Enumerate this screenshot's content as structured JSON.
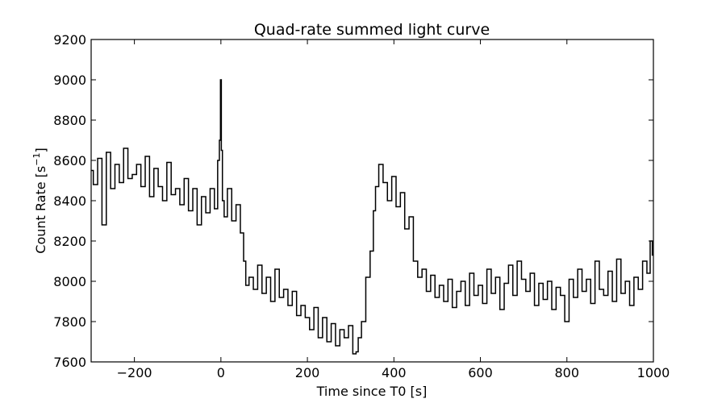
{
  "chart_data": {
    "type": "line",
    "title": "Quad-rate summed light curve",
    "xlabel": "Time since T0 [s]",
    "ylabel_main": "Count Rate [s",
    "ylabel_sup": "−1",
    "ylabel_end": "]",
    "xlim": [
      -300,
      1000
    ],
    "ylim": [
      7600,
      9200
    ],
    "xticks": [
      -200,
      0,
      200,
      400,
      600,
      800,
      1000
    ],
    "xtick_labels": [
      "−200",
      "0",
      "200",
      "400",
      "600",
      "800",
      "1000"
    ],
    "yticks": [
      7600,
      7800,
      8000,
      8200,
      8400,
      8600,
      8800,
      9000,
      9200
    ],
    "ytick_labels": [
      "7600",
      "7800",
      "8000",
      "8200",
      "8400",
      "8600",
      "8800",
      "9000",
      "9200"
    ],
    "grid": false,
    "step": "steps-mid",
    "line_color": "#000000",
    "series": [
      {
        "x": [
          -300,
          -290,
          -280,
          -270,
          -260,
          -250,
          -240,
          -230,
          -220,
          -210,
          -200,
          -190,
          -180,
          -170,
          -160,
          -150,
          -140,
          -130,
          -120,
          -110,
          -100,
          -90,
          -80,
          -70,
          -60,
          -50,
          -40,
          -30,
          -20,
          -10,
          -5,
          -2,
          0,
          2,
          5,
          10,
          20,
          30,
          40,
          50,
          55,
          60,
          70,
          80,
          90,
          100,
          110,
          120,
          130,
          140,
          150,
          160,
          170,
          180,
          190,
          200,
          210,
          220,
          230,
          240,
          250,
          260,
          270,
          280,
          290,
          300,
          310,
          315,
          320,
          330,
          340,
          350,
          355,
          360,
          370,
          380,
          390,
          400,
          410,
          420,
          430,
          440,
          450,
          460,
          470,
          480,
          490,
          500,
          510,
          520,
          530,
          540,
          550,
          560,
          570,
          580,
          590,
          600,
          610,
          620,
          630,
          640,
          650,
          660,
          670,
          680,
          690,
          700,
          710,
          720,
          730,
          740,
          750,
          760,
          770,
          780,
          790,
          800,
          810,
          820,
          830,
          840,
          850,
          860,
          870,
          880,
          890,
          900,
          910,
          920,
          930,
          940,
          950,
          960,
          970,
          980,
          990,
          995,
          1000
        ],
        "y": [
          8550,
          8480,
          8610,
          8280,
          8640,
          8460,
          8580,
          8490,
          8660,
          8510,
          8530,
          8580,
          8470,
          8620,
          8420,
          8560,
          8470,
          8400,
          8590,
          8430,
          8460,
          8380,
          8510,
          8350,
          8460,
          8280,
          8420,
          8340,
          8460,
          8360,
          8600,
          8700,
          9000,
          8650,
          8400,
          8320,
          8460,
          8300,
          8380,
          8240,
          8100,
          7980,
          8020,
          7960,
          8080,
          7940,
          8020,
          7900,
          8060,
          7920,
          7960,
          7880,
          7950,
          7830,
          7880,
          7820,
          7760,
          7870,
          7720,
          7820,
          7700,
          7790,
          7680,
          7760,
          7720,
          7780,
          7640,
          7650,
          7720,
          7800,
          8020,
          8150,
          8350,
          8470,
          8580,
          8490,
          8400,
          8520,
          8370,
          8440,
          8260,
          8320,
          8100,
          8020,
          8060,
          7950,
          8030,
          7920,
          7980,
          7900,
          8010,
          7870,
          7950,
          8000,
          7880,
          8040,
          7930,
          7980,
          7890,
          8060,
          7940,
          8020,
          7860,
          7990,
          8080,
          7930,
          8100,
          8010,
          7950,
          8040,
          7880,
          7990,
          7910,
          8000,
          7860,
          7970,
          7930,
          7800,
          8010,
          7920,
          8060,
          7950,
          8010,
          7890,
          8100,
          7960,
          7930,
          8050,
          7900,
          8110,
          7940,
          8000,
          7880,
          8020,
          7960,
          8100,
          8040,
          8200,
          8130
        ]
      }
    ]
  }
}
